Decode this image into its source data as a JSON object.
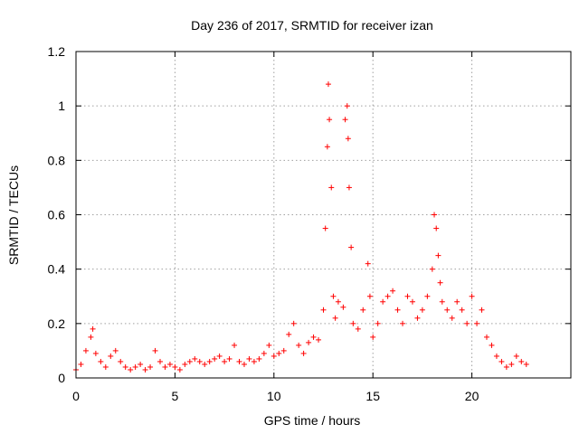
{
  "chart_data": {
    "type": "scatter",
    "title": "Day 236 of 2017, SRMTID for receiver izan",
    "xlabel": "GPS time / hours",
    "ylabel": "SRMTID / TECUs",
    "xlim": [
      0,
      25
    ],
    "ylim": [
      0,
      1.2
    ],
    "xticks": [
      0,
      5,
      10,
      15,
      20
    ],
    "xtick_labels": [
      "0",
      "5",
      "10",
      "15",
      "20"
    ],
    "yticks": [
      0,
      0.2,
      0.4,
      0.6,
      0.8,
      1.0,
      1.2
    ],
    "ytick_labels": [
      "0",
      "0.2",
      "0.4",
      "0.6",
      "0.8",
      "1",
      "1.2"
    ],
    "grid": true,
    "marker": "plus",
    "color": "#ff0000",
    "series": [
      {
        "name": "SRMTID",
        "x": [
          0.0,
          0.25,
          0.5,
          0.75,
          0.85,
          1.0,
          1.25,
          1.5,
          1.75,
          2.0,
          2.25,
          2.5,
          2.75,
          3.0,
          3.25,
          3.5,
          3.75,
          4.0,
          4.25,
          4.5,
          4.75,
          5.0,
          5.25,
          5.5,
          5.75,
          6.0,
          6.25,
          6.5,
          6.75,
          7.0,
          7.25,
          7.5,
          7.75,
          8.0,
          8.25,
          8.5,
          8.75,
          9.0,
          9.25,
          9.5,
          9.75,
          10.0,
          10.25,
          10.5,
          10.75,
          11.0,
          11.25,
          11.5,
          11.75,
          12.0,
          12.25,
          12.5,
          12.6,
          12.7,
          12.75,
          12.8,
          12.9,
          13.0,
          13.1,
          13.25,
          13.5,
          13.6,
          13.7,
          13.75,
          13.8,
          13.9,
          14.0,
          14.25,
          14.5,
          14.75,
          14.85,
          15.0,
          15.25,
          15.5,
          15.75,
          16.0,
          16.25,
          16.5,
          16.75,
          17.0,
          17.25,
          17.5,
          17.75,
          18.0,
          18.1,
          18.2,
          18.3,
          18.4,
          18.5,
          18.75,
          19.0,
          19.25,
          19.5,
          19.75,
          20.0,
          20.25,
          20.5,
          20.75,
          21.0,
          21.25,
          21.5,
          21.75,
          22.0,
          22.25,
          22.5,
          22.75
        ],
        "y": [
          0.03,
          0.05,
          0.1,
          0.15,
          0.18,
          0.09,
          0.06,
          0.04,
          0.08,
          0.1,
          0.06,
          0.04,
          0.03,
          0.04,
          0.05,
          0.03,
          0.04,
          0.1,
          0.06,
          0.04,
          0.05,
          0.04,
          0.03,
          0.05,
          0.06,
          0.07,
          0.06,
          0.05,
          0.06,
          0.07,
          0.08,
          0.06,
          0.07,
          0.12,
          0.06,
          0.05,
          0.07,
          0.06,
          0.07,
          0.09,
          0.12,
          0.08,
          0.09,
          0.1,
          0.16,
          0.2,
          0.12,
          0.09,
          0.13,
          0.15,
          0.14,
          0.25,
          0.55,
          0.85,
          1.08,
          0.95,
          0.7,
          0.3,
          0.22,
          0.28,
          0.26,
          0.95,
          1.0,
          0.88,
          0.7,
          0.48,
          0.2,
          0.18,
          0.25,
          0.42,
          0.3,
          0.15,
          0.2,
          0.28,
          0.3,
          0.32,
          0.25,
          0.2,
          0.3,
          0.28,
          0.22,
          0.25,
          0.3,
          0.4,
          0.6,
          0.55,
          0.45,
          0.35,
          0.28,
          0.25,
          0.22,
          0.28,
          0.25,
          0.2,
          0.3,
          0.2,
          0.25,
          0.15,
          0.12,
          0.08,
          0.06,
          0.04,
          0.05,
          0.08,
          0.06,
          0.05
        ]
      }
    ]
  }
}
